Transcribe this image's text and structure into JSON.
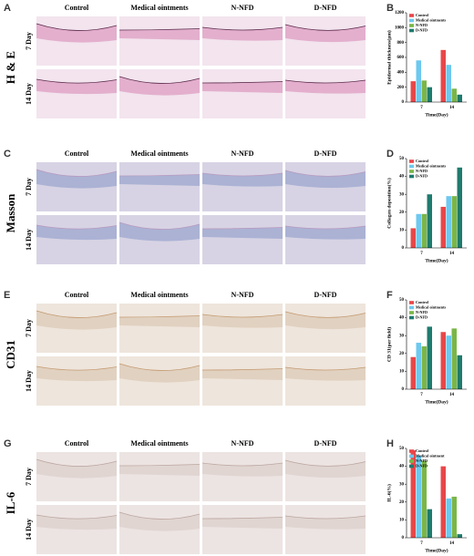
{
  "panels": [
    {
      "letter": "A",
      "stain": "H & E",
      "columns": [
        "Control",
        "Medical ointments",
        "N-NFD",
        "D-NFD"
      ],
      "days": [
        "7 Day",
        "14 Day"
      ]
    },
    {
      "letter": "C",
      "stain": "Masson",
      "columns": [
        "Control",
        "Medical ointments",
        "N-NFD",
        "D-NFD"
      ],
      "days": [
        "7 Day",
        "14 Day"
      ]
    },
    {
      "letter": "E",
      "stain": "CD31",
      "columns": [
        "Control",
        "Medical ointments",
        "N-NFD",
        "D-NFD"
      ],
      "days": [
        "7 Day",
        "14 Day"
      ]
    },
    {
      "letter": "G",
      "stain": "IL-6",
      "columns": [
        "Control",
        "Medical ointments",
        "N-NFD",
        "D-NFD"
      ],
      "days": [
        "7 Day",
        "14 Day"
      ]
    }
  ],
  "chart_data": [
    {
      "type": "bar",
      "label": "B",
      "ylabel": "Epidermal thickness(μm)",
      "xlabel": "Time(Day)",
      "categories": [
        "7",
        "14"
      ],
      "series": [
        {
          "name": "Control",
          "color": "#e8474a",
          "values": [
            280,
            700
          ]
        },
        {
          "name": "Medical ointments",
          "color": "#6ec8ee",
          "values": [
            560,
            500
          ]
        },
        {
          "name": "N-NFD",
          "color": "#7ab648",
          "values": [
            290,
            180
          ]
        },
        {
          "name": "D-NFD",
          "color": "#1e7b6e",
          "values": [
            200,
            100
          ]
        }
      ],
      "ylim": [
        0,
        1200
      ],
      "yticks": [
        0,
        200,
        400,
        600,
        800,
        1000,
        1200
      ]
    },
    {
      "type": "bar",
      "label": "D",
      "ylabel": "Collagen deposition(%)",
      "xlabel": "Time(Day)",
      "categories": [
        "7",
        "14"
      ],
      "series": [
        {
          "name": "Control",
          "color": "#e8474a",
          "values": [
            11,
            23
          ]
        },
        {
          "name": "Medical ointments",
          "color": "#6ec8ee",
          "values": [
            19,
            29
          ]
        },
        {
          "name": "N-NFD",
          "color": "#7ab648",
          "values": [
            19,
            29
          ]
        },
        {
          "name": "D-NFD",
          "color": "#1e7b6e",
          "values": [
            30,
            45
          ]
        }
      ],
      "ylim": [
        0,
        50
      ],
      "yticks": [
        0,
        10,
        20,
        30,
        40,
        50
      ]
    },
    {
      "type": "bar",
      "label": "F",
      "ylabel": "CD 31(per field)",
      "xlabel": "Time(Day)",
      "categories": [
        "7",
        "14"
      ],
      "series": [
        {
          "name": "Control",
          "color": "#e8474a",
          "values": [
            18,
            32
          ]
        },
        {
          "name": "Medical ointments",
          "color": "#6ec8ee",
          "values": [
            26,
            30
          ]
        },
        {
          "name": "N-NFD",
          "color": "#7ab648",
          "values": [
            24,
            34
          ]
        },
        {
          "name": "D-NFD",
          "color": "#1e7b6e",
          "values": [
            35,
            19
          ]
        }
      ],
      "ylim": [
        0,
        50
      ],
      "yticks": [
        0,
        10,
        20,
        30,
        40,
        50
      ]
    },
    {
      "type": "bar",
      "label": "H",
      "ylabel": "IL-6(%)",
      "xlabel": "Time(Day)",
      "categories": [
        "7",
        "14"
      ],
      "series": [
        {
          "name": "Control",
          "color": "#e8474a",
          "values": [
            49,
            40
          ]
        },
        {
          "name": "Medical ointment",
          "color": "#6ec8ee",
          "values": [
            46,
            22
          ]
        },
        {
          "name": "N-NFD",
          "color": "#7ab648",
          "values": [
            43,
            23
          ]
        },
        {
          "name": "D-NFD",
          "color": "#1e7b6e",
          "values": [
            16,
            2
          ]
        }
      ],
      "ylim": [
        0,
        50
      ],
      "yticks": [
        0,
        10,
        20,
        30,
        40,
        50
      ]
    }
  ]
}
